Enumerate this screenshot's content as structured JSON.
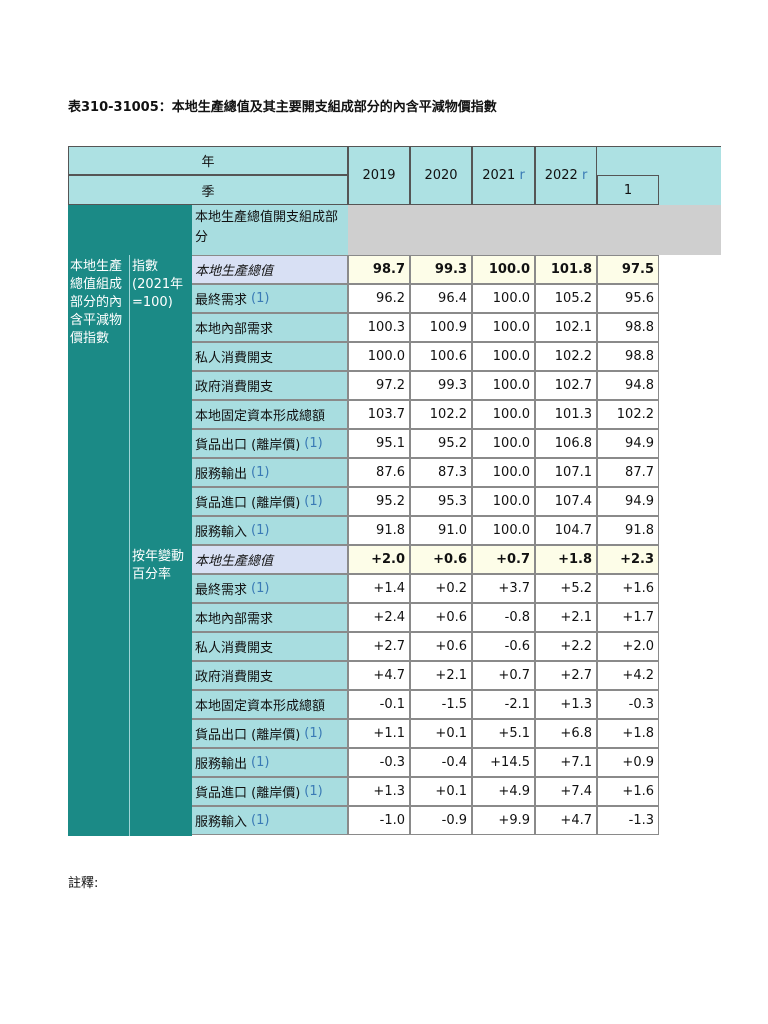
{
  "title": "表310-31005：本地生產總值及其主要開支組成部分的內含平減物價指數",
  "header": {
    "year_label": "年",
    "quarter_label": "季",
    "years": [
      {
        "label": "2019",
        "mark": ""
      },
      {
        "label": "2020",
        "mark": ""
      },
      {
        "label": "2021",
        "mark": "r"
      },
      {
        "label": "2022",
        "mark": "r"
      }
    ],
    "quarter": "1",
    "component_header": "本地生產總值開支組成部分"
  },
  "side": {
    "main_label": "本地生產總值組成部分的內含平減物價指數",
    "index_label": "指數 (2021年=100)",
    "change_label": "按年變動百分率"
  },
  "index_rows": [
    {
      "label": "本地生產總值",
      "fn": "",
      "values": [
        "98.7",
        "99.3",
        "100.0",
        "101.8",
        "97.5"
      ]
    },
    {
      "label": "最終需求",
      "fn": "(1)",
      "values": [
        "96.2",
        "96.4",
        "100.0",
        "105.2",
        "95.6"
      ]
    },
    {
      "label": "本地內部需求",
      "fn": "",
      "values": [
        "100.3",
        "100.9",
        "100.0",
        "102.1",
        "98.8"
      ]
    },
    {
      "label": "私人消費開支",
      "fn": "",
      "values": [
        "100.0",
        "100.6",
        "100.0",
        "102.2",
        "98.8"
      ]
    },
    {
      "label": "政府消費開支",
      "fn": "",
      "values": [
        "97.2",
        "99.3",
        "100.0",
        "102.7",
        "94.8"
      ]
    },
    {
      "label": "本地固定資本形成總額",
      "fn": "",
      "values": [
        "103.7",
        "102.2",
        "100.0",
        "101.3",
        "102.2"
      ]
    },
    {
      "label": "貨品出口 (離岸價)",
      "fn": "(1)",
      "values": [
        "95.1",
        "95.2",
        "100.0",
        "106.8",
        "94.9"
      ]
    },
    {
      "label": "服務輸出",
      "fn": "(1)",
      "values": [
        "87.6",
        "87.3",
        "100.0",
        "107.1",
        "87.7"
      ]
    },
    {
      "label": "貨品進口 (離岸價)",
      "fn": "(1)",
      "values": [
        "95.2",
        "95.3",
        "100.0",
        "107.4",
        "94.9"
      ]
    },
    {
      "label": "服務輸入",
      "fn": "(1)",
      "values": [
        "91.8",
        "91.0",
        "100.0",
        "104.7",
        "91.8"
      ]
    }
  ],
  "change_rows": [
    {
      "label": "本地生產總值",
      "fn": "",
      "values": [
        "+2.0",
        "+0.6",
        "+0.7",
        "+1.8",
        "+2.3"
      ]
    },
    {
      "label": "最終需求",
      "fn": "(1)",
      "values": [
        "+1.4",
        "+0.2",
        "+3.7",
        "+5.2",
        "+1.6"
      ]
    },
    {
      "label": "本地內部需求",
      "fn": "",
      "values": [
        "+2.4",
        "+0.6",
        "-0.8",
        "+2.1",
        "+1.7"
      ]
    },
    {
      "label": "私人消費開支",
      "fn": "",
      "values": [
        "+2.7",
        "+0.6",
        "-0.6",
        "+2.2",
        "+2.0"
      ]
    },
    {
      "label": "政府消費開支",
      "fn": "",
      "values": [
        "+4.7",
        "+2.1",
        "+0.7",
        "+2.7",
        "+4.2"
      ]
    },
    {
      "label": "本地固定資本形成總額",
      "fn": "",
      "values": [
        "-0.1",
        "-1.5",
        "-2.1",
        "+1.3",
        "-0.3"
      ]
    },
    {
      "label": "貨品出口 (離岸價)",
      "fn": "(1)",
      "values": [
        "+1.1",
        "+0.1",
        "+5.1",
        "+6.8",
        "+1.8"
      ]
    },
    {
      "label": "服務輸出",
      "fn": "(1)",
      "values": [
        "-0.3",
        "-0.4",
        "+14.5",
        "+7.1",
        "+0.9"
      ]
    },
    {
      "label": "貨品進口 (離岸價)",
      "fn": "(1)",
      "values": [
        "+1.3",
        "+0.1",
        "+4.9",
        "+7.4",
        "+1.6"
      ]
    },
    {
      "label": "服務輸入",
      "fn": "(1)",
      "values": [
        "-1.0",
        "-0.9",
        "+9.9",
        "+4.7",
        "-1.3"
      ]
    }
  ],
  "notes_label": "註釋:"
}
